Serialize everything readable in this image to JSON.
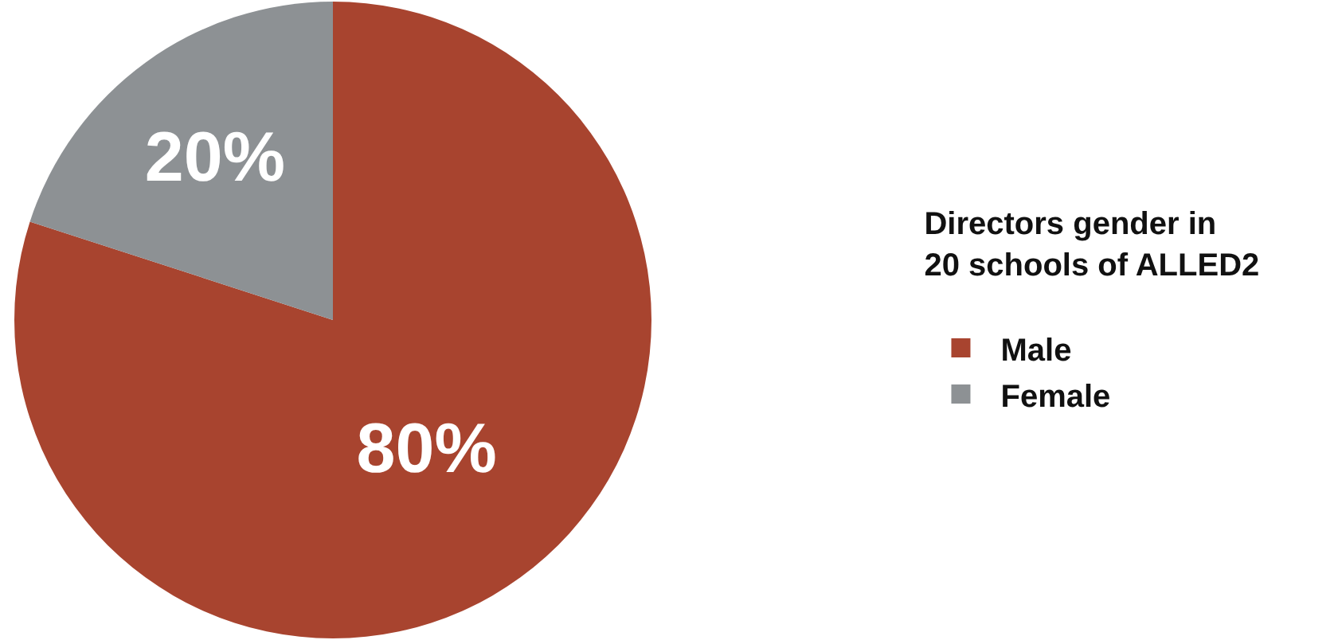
{
  "chart_data": {
    "type": "pie",
    "legend_title": "Directors gender in\n20 schools of ALLED2",
    "categories": [
      "Male",
      "Female"
    ],
    "values": [
      80,
      20
    ],
    "colors": [
      "#a8442f",
      "#8d9194"
    ],
    "value_labels": [
      "80%",
      "20%"
    ],
    "legend": "right"
  }
}
